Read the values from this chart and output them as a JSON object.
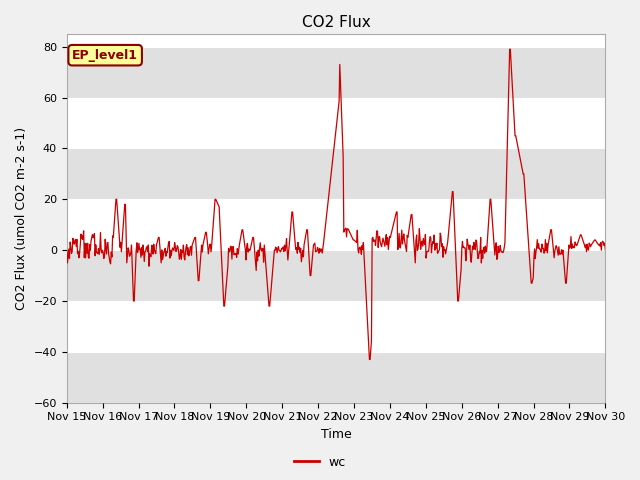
{
  "title": "CO2 Flux",
  "ylabel": "CO2 Flux (umol CO2 m-2 s-1)",
  "xlabel": "Time",
  "ylim": [
    -60,
    85
  ],
  "yticks": [
    -60,
    -40,
    -20,
    0,
    20,
    40,
    60,
    80
  ],
  "xlim": [
    0,
    15
  ],
  "xtick_labels": [
    "Nov 15",
    "Nov 16",
    "Nov 17",
    "Nov 18",
    "Nov 19",
    "Nov 20",
    "Nov 21",
    "Nov 22",
    "Nov 23",
    "Nov 24",
    "Nov 25",
    "Nov 26",
    "Nov 27",
    "Nov 28",
    "Nov 29",
    "Nov 30"
  ],
  "line_color": "#cc0000",
  "background_color": "#f0f0f0",
  "plot_bg_color": "#ffffff",
  "legend_label": "wc",
  "annotation_text": "EP_level1",
  "annotation_bg": "#ffff99",
  "annotation_border": "#8b0000",
  "gray_band_color": "#e0e0e0",
  "title_fontsize": 11,
  "axis_label_fontsize": 9,
  "tick_fontsize": 8,
  "figsize": [
    6.4,
    4.8
  ],
  "dpi": 100
}
